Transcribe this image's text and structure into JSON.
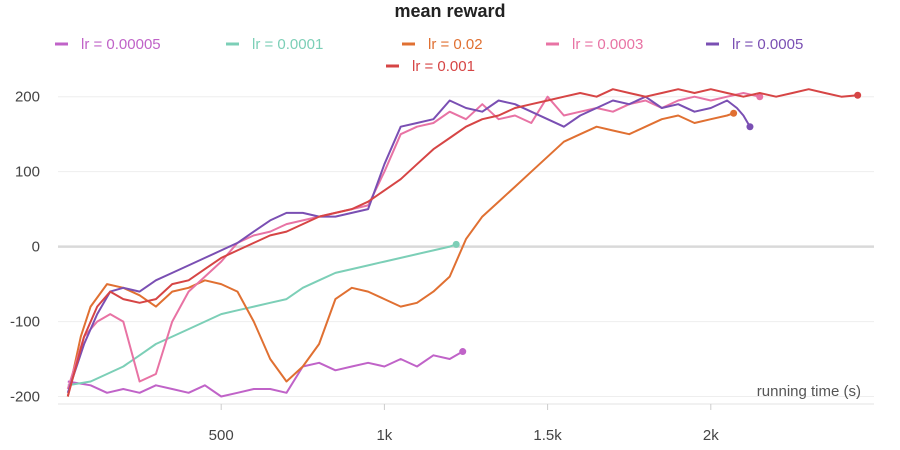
{
  "chart_data": {
    "type": "line",
    "title": "mean reward",
    "xlabel": "running time (s)",
    "ylabel": "",
    "xlim": [
      0,
      2500
    ],
    "ylim": [
      -210,
      225
    ],
    "x_ticks": [
      500,
      1000,
      1500,
      2000
    ],
    "x_tick_labels": [
      "500",
      "1k",
      "1.5k",
      "2k"
    ],
    "y_ticks": [
      -200,
      -100,
      0,
      100,
      200
    ],
    "y_tick_labels": [
      "-200",
      "-100",
      "0",
      "100",
      "200"
    ],
    "grid": true,
    "legend_position": "top",
    "series": [
      {
        "name": "lr = 0.00005",
        "color": "#c063c8",
        "x": [
          30,
          100,
          150,
          200,
          250,
          300,
          350,
          400,
          450,
          500,
          550,
          600,
          650,
          700,
          750,
          800,
          850,
          900,
          950,
          1000,
          1050,
          1100,
          1150,
          1200,
          1240
        ],
        "y": [
          -180,
          -185,
          -195,
          -190,
          -195,
          -185,
          -190,
          -195,
          -185,
          -200,
          -195,
          -190,
          -190,
          -195,
          -160,
          -155,
          -165,
          -160,
          -155,
          -160,
          -150,
          -160,
          -145,
          -150,
          -140
        ]
      },
      {
        "name": "lr = 0.0001",
        "color": "#7ccfb7",
        "x": [
          30,
          100,
          150,
          200,
          250,
          300,
          350,
          400,
          450,
          500,
          550,
          600,
          650,
          700,
          750,
          800,
          850,
          900,
          950,
          1000,
          1050,
          1100,
          1150,
          1200,
          1220
        ],
        "y": [
          -185,
          -180,
          -170,
          -160,
          -145,
          -130,
          -120,
          -110,
          -100,
          -90,
          -85,
          -80,
          -75,
          -70,
          -55,
          -45,
          -35,
          -30,
          -25,
          -20,
          -15,
          -10,
          -5,
          0,
          3
        ]
      },
      {
        "name": "lr = 0.02",
        "color": "#e07032",
        "x": [
          30,
          70,
          100,
          150,
          200,
          250,
          300,
          350,
          400,
          450,
          500,
          550,
          600,
          650,
          700,
          750,
          800,
          850,
          900,
          950,
          1000,
          1050,
          1100,
          1150,
          1200,
          1250,
          1300,
          1350,
          1400,
          1450,
          1500,
          1550,
          1600,
          1650,
          1700,
          1750,
          1800,
          1850,
          1900,
          1950,
          2000,
          2050,
          2070
        ],
        "y": [
          -200,
          -120,
          -80,
          -50,
          -55,
          -65,
          -80,
          -60,
          -55,
          -45,
          -50,
          -60,
          -100,
          -150,
          -180,
          -160,
          -130,
          -70,
          -55,
          -60,
          -70,
          -80,
          -75,
          -60,
          -40,
          10,
          40,
          60,
          80,
          100,
          120,
          140,
          150,
          160,
          155,
          150,
          160,
          170,
          175,
          165,
          170,
          175,
          178
        ]
      },
      {
        "name": "lr = 0.0003",
        "color": "#e873a4",
        "x": [
          30,
          80,
          120,
          160,
          200,
          250,
          300,
          350,
          400,
          450,
          500,
          550,
          600,
          650,
          700,
          750,
          800,
          850,
          900,
          950,
          1000,
          1050,
          1100,
          1150,
          1200,
          1250,
          1300,
          1350,
          1400,
          1450,
          1500,
          1550,
          1600,
          1650,
          1700,
          1750,
          1800,
          1850,
          1900,
          1950,
          2000,
          2050,
          2100,
          2150
        ],
        "y": [
          -190,
          -120,
          -100,
          -90,
          -100,
          -180,
          -170,
          -100,
          -60,
          -40,
          -20,
          5,
          15,
          20,
          30,
          35,
          40,
          45,
          50,
          55,
          100,
          150,
          160,
          165,
          180,
          170,
          190,
          170,
          175,
          165,
          200,
          175,
          180,
          185,
          180,
          190,
          195,
          185,
          195,
          200,
          195,
          200,
          205,
          200
        ]
      },
      {
        "name": "lr = 0.0005",
        "color": "#7a4fb3",
        "x": [
          30,
          80,
          120,
          160,
          200,
          250,
          300,
          350,
          400,
          450,
          500,
          550,
          600,
          650,
          700,
          750,
          800,
          850,
          900,
          950,
          1000,
          1050,
          1100,
          1150,
          1200,
          1250,
          1300,
          1350,
          1400,
          1450,
          1500,
          1550,
          1600,
          1650,
          1700,
          1750,
          1800,
          1850,
          1900,
          1950,
          2000,
          2050,
          2080,
          2100,
          2120
        ],
        "y": [
          -195,
          -130,
          -90,
          -60,
          -55,
          -60,
          -45,
          -35,
          -25,
          -15,
          -5,
          5,
          20,
          35,
          45,
          45,
          40,
          40,
          45,
          50,
          110,
          160,
          165,
          170,
          195,
          185,
          180,
          195,
          190,
          180,
          170,
          160,
          175,
          185,
          195,
          190,
          200,
          185,
          190,
          180,
          185,
          195,
          185,
          175,
          160
        ]
      },
      {
        "name": "lr = 0.001",
        "color": "#d64545",
        "x": [
          30,
          80,
          120,
          160,
          200,
          250,
          300,
          350,
          400,
          450,
          500,
          550,
          600,
          650,
          700,
          750,
          800,
          850,
          900,
          950,
          1000,
          1050,
          1100,
          1150,
          1200,
          1250,
          1300,
          1350,
          1400,
          1450,
          1500,
          1550,
          1600,
          1650,
          1700,
          1750,
          1800,
          1850,
          1900,
          1950,
          2000,
          2050,
          2100,
          2150,
          2200,
          2250,
          2300,
          2350,
          2400,
          2450
        ],
        "y": [
          -200,
          -120,
          -80,
          -60,
          -70,
          -75,
          -70,
          -50,
          -45,
          -30,
          -15,
          -5,
          5,
          15,
          20,
          30,
          40,
          45,
          50,
          60,
          75,
          90,
          110,
          130,
          145,
          160,
          170,
          175,
          185,
          190,
          195,
          200,
          205,
          200,
          210,
          205,
          200,
          205,
          210,
          205,
          210,
          205,
          200,
          205,
          200,
          205,
          210,
          205,
          200,
          202
        ]
      }
    ]
  }
}
